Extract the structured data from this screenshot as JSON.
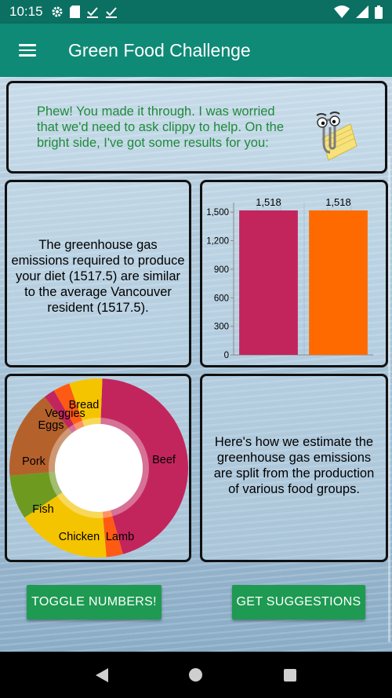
{
  "status_bar": {
    "time": "10:15",
    "left_icons": [
      "gear-icon",
      "sd-card-icon",
      "check-icon",
      "check-icon"
    ],
    "right_icons": [
      "wifi-icon",
      "signal-icon",
      "battery-icon"
    ]
  },
  "app_bar": {
    "title": "Green Food Challenge",
    "menu_icon": "hamburger-menu-icon"
  },
  "intro_card": {
    "message": "Phew! You made it through. I was worried that we'd need to ask clippy to help. On the bright side, I've got some results for you:",
    "image": "clippy-icon"
  },
  "comparison_card": {
    "text": "The greenhouse gas emissions required to produce your diet (1517.5) are similar to the average Vancouver resident (1517.5)."
  },
  "split_card": {
    "text": "Here's how we estimate the greenhouse gas emissions are split from the production of various food groups."
  },
  "chart_data": [
    {
      "type": "bar",
      "categories": [
        "",
        ""
      ],
      "values": [
        1517.5,
        1517.5
      ],
      "data_labels": [
        "1,518",
        "1,518"
      ],
      "colors": [
        "#c2255c",
        "#ff6a00"
      ],
      "ylim": [
        0,
        1600
      ],
      "yticks": [
        "0",
        "300",
        "600",
        "900",
        "1,200",
        "1,500"
      ],
      "title": "",
      "xlabel": "",
      "ylabel": ""
    },
    {
      "type": "pie",
      "style": "donut",
      "slices": [
        {
          "label": "Beef",
          "value": 45,
          "color": "#c2255c"
        },
        {
          "label": "Lamb",
          "value": 3,
          "color": "#ff5a14"
        },
        {
          "label": "Chicken",
          "value": 17,
          "color": "#f5c400"
        },
        {
          "label": "Fish",
          "value": 8,
          "color": "#6f9a20"
        },
        {
          "label": "Pork",
          "value": 16,
          "color": "#b5612c"
        },
        {
          "label": "Eggs",
          "value": 2,
          "color": "#c2255c"
        },
        {
          "label": "Veggies",
          "value": 3,
          "color": "#ff5a14"
        },
        {
          "label": "Bread",
          "value": 6,
          "color": "#f5c400"
        }
      ]
    }
  ],
  "buttons": {
    "toggle": "TOGGLE NUMBERS!",
    "suggest": "GET SUGGESTIONS"
  },
  "nav_bar": {
    "back_icon": "back-icon",
    "home_icon": "home-icon",
    "recent_icon": "recent-apps-icon"
  }
}
